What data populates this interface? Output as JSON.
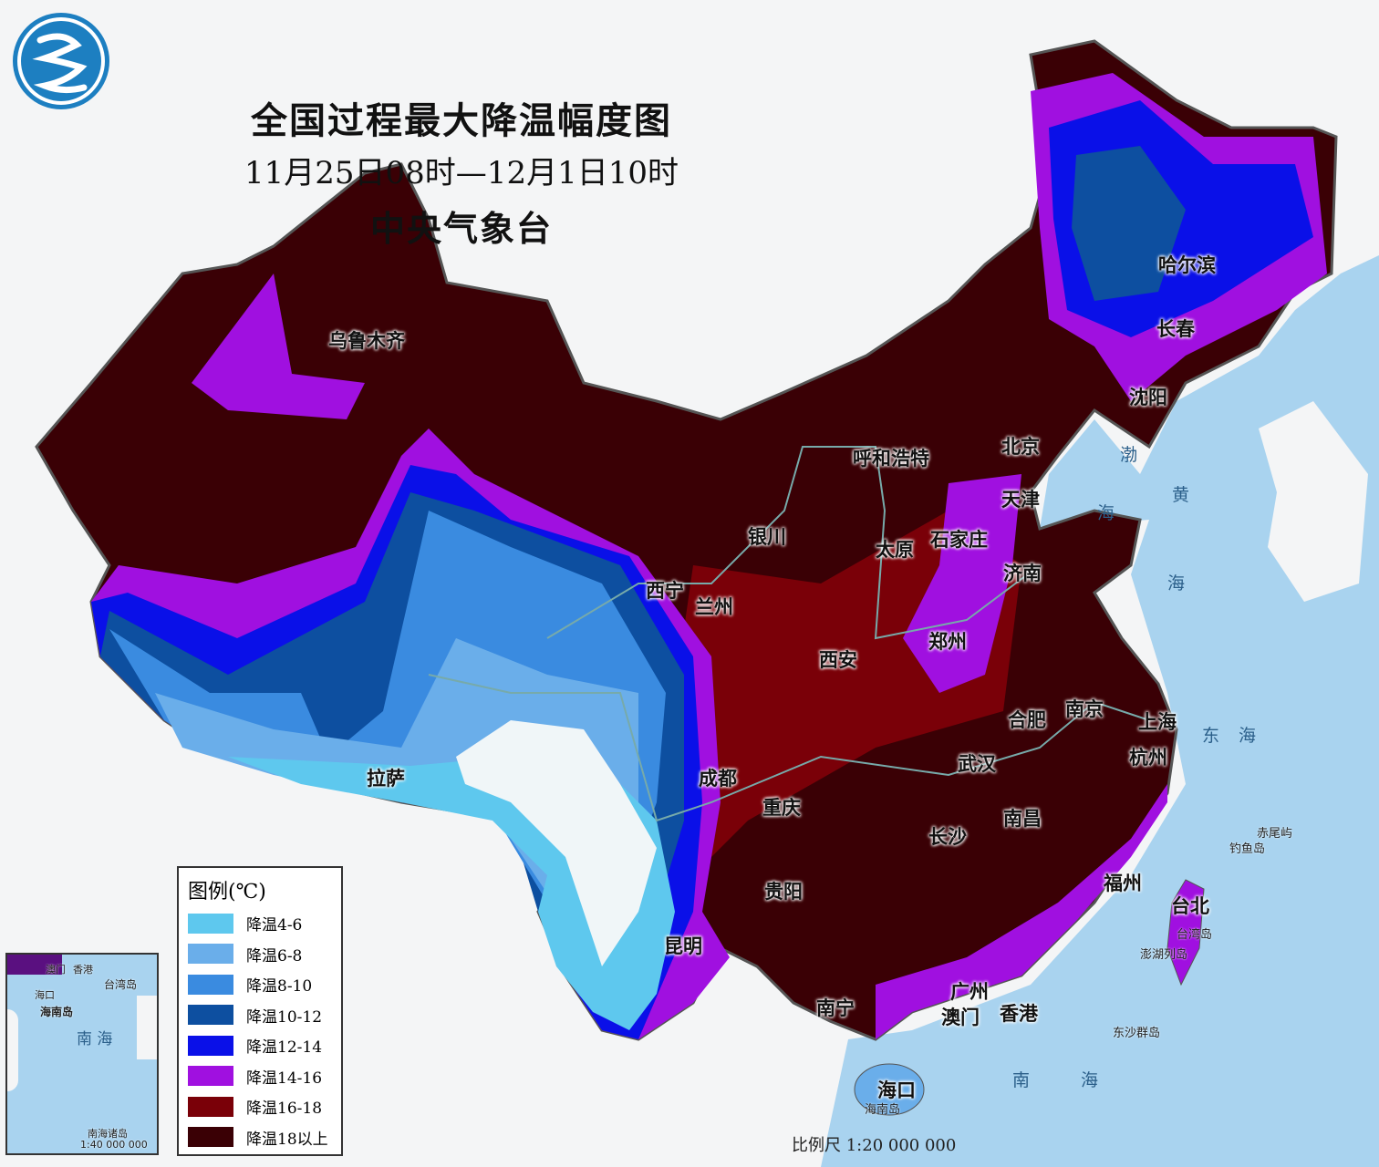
{
  "title": "全国过程最大降温幅度图",
  "period": "11月25日08时—12月1日10时",
  "issuer": "中央气象台",
  "logo": "中国气象局 logo",
  "legend": {
    "title": "图例(℃)",
    "items": [
      {
        "label": "降温4-6",
        "color": "#5ec8ee"
      },
      {
        "label": "降温6-8",
        "color": "#6aaeea"
      },
      {
        "label": "降温8-10",
        "color": "#3a8be0"
      },
      {
        "label": "降温10-12",
        "color": "#0d4fa0"
      },
      {
        "label": "降温12-14",
        "color": "#0a10e8"
      },
      {
        "label": "降温14-16",
        "color": "#a010e0"
      },
      {
        "label": "降温16-18",
        "color": "#7a0008"
      },
      {
        "label": "降温18以上",
        "color": "#3a0005"
      }
    ]
  },
  "cities": [
    "乌鲁木齐",
    "哈尔滨",
    "长春",
    "沈阳",
    "北京",
    "天津",
    "呼和浩特",
    "石家庄",
    "太原",
    "济南",
    "银川",
    "西宁",
    "兰州",
    "郑州",
    "西安",
    "合肥",
    "南京",
    "上海",
    "杭州",
    "武汉",
    "成都",
    "重庆",
    "南昌",
    "长沙",
    "拉萨",
    "福州",
    "台北",
    "贵阳",
    "昆明",
    "广州",
    "南宁",
    "澳门",
    "香港",
    "海口"
  ],
  "seas": [
    "渤",
    "海",
    "黄",
    "海",
    "东",
    "海",
    "南",
    "海"
  ],
  "islands": [
    "赤尾屿",
    "钓鱼岛",
    "台湾岛",
    "澎湖列岛",
    "东沙群岛",
    "海南岛"
  ],
  "inset": {
    "labels": [
      "澳门",
      "香港",
      "台湾岛",
      "海口",
      "海南岛"
    ],
    "sea": "南 海",
    "caption": "南海诸岛",
    "scale": "1:40 000 000"
  },
  "scale": "比例尺  1:20 000 000"
}
